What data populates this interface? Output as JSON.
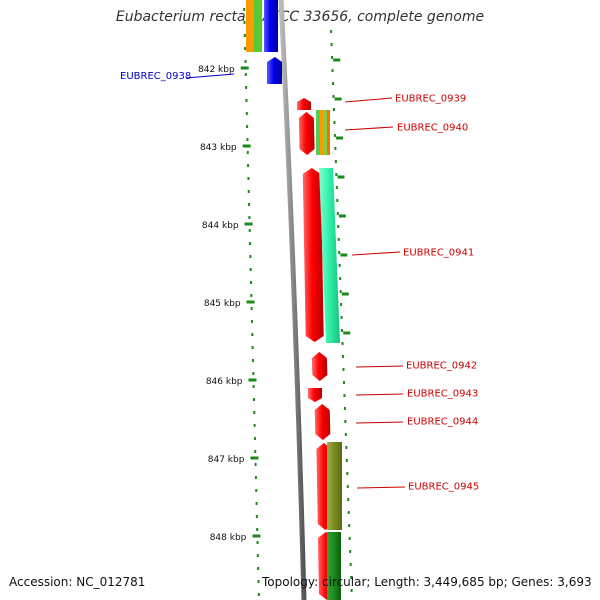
{
  "title": "Eubacterium rectale ATCC 33656, complete genome",
  "accession": "Accession: NC_012781",
  "summary": "Topology: circular; Length: 3,449,685 bp; Genes: 3,693",
  "colors": {
    "forward_gene": "#0000ee",
    "reverse_gene": "#ee0000",
    "tick": "#1a8a1a",
    "backbone": "#888888",
    "label_forward": "#0000cc",
    "label_reverse": "#cc0000"
  },
  "ruler": {
    "ticks": [
      "842 kbp",
      "843 kbp",
      "844 kbp",
      "845 kbp",
      "846 kbp",
      "847 kbp",
      "848 kbp"
    ]
  },
  "genes": [
    {
      "id": "EUBREC_0938",
      "strand": "forward",
      "start_kbp": 841.7,
      "end_kbp": 842.2
    },
    {
      "id": "EUBREC_0939",
      "strand": "reverse",
      "start_kbp": 842.4,
      "end_kbp": 842.55
    },
    {
      "id": "EUBREC_0940",
      "strand": "reverse",
      "start_kbp": 842.55,
      "end_kbp": 843.1
    },
    {
      "id": "EUBREC_0941",
      "strand": "reverse",
      "start_kbp": 843.3,
      "end_kbp": 845.6
    },
    {
      "id": "EUBREC_0942",
      "strand": "reverse",
      "start_kbp": 845.7,
      "end_kbp": 846.05
    },
    {
      "id": "EUBREC_0943",
      "strand": "reverse",
      "start_kbp": 846.1,
      "end_kbp": 846.25
    },
    {
      "id": "EUBREC_0944",
      "strand": "reverse",
      "start_kbp": 846.3,
      "end_kbp": 846.75
    },
    {
      "id": "EUBREC_0945",
      "strand": "reverse",
      "start_kbp": 846.8,
      "end_kbp": 847.9
    },
    {
      "strand": "reverse",
      "start_kbp": 848.0,
      "end_kbp": 848.8
    }
  ]
}
